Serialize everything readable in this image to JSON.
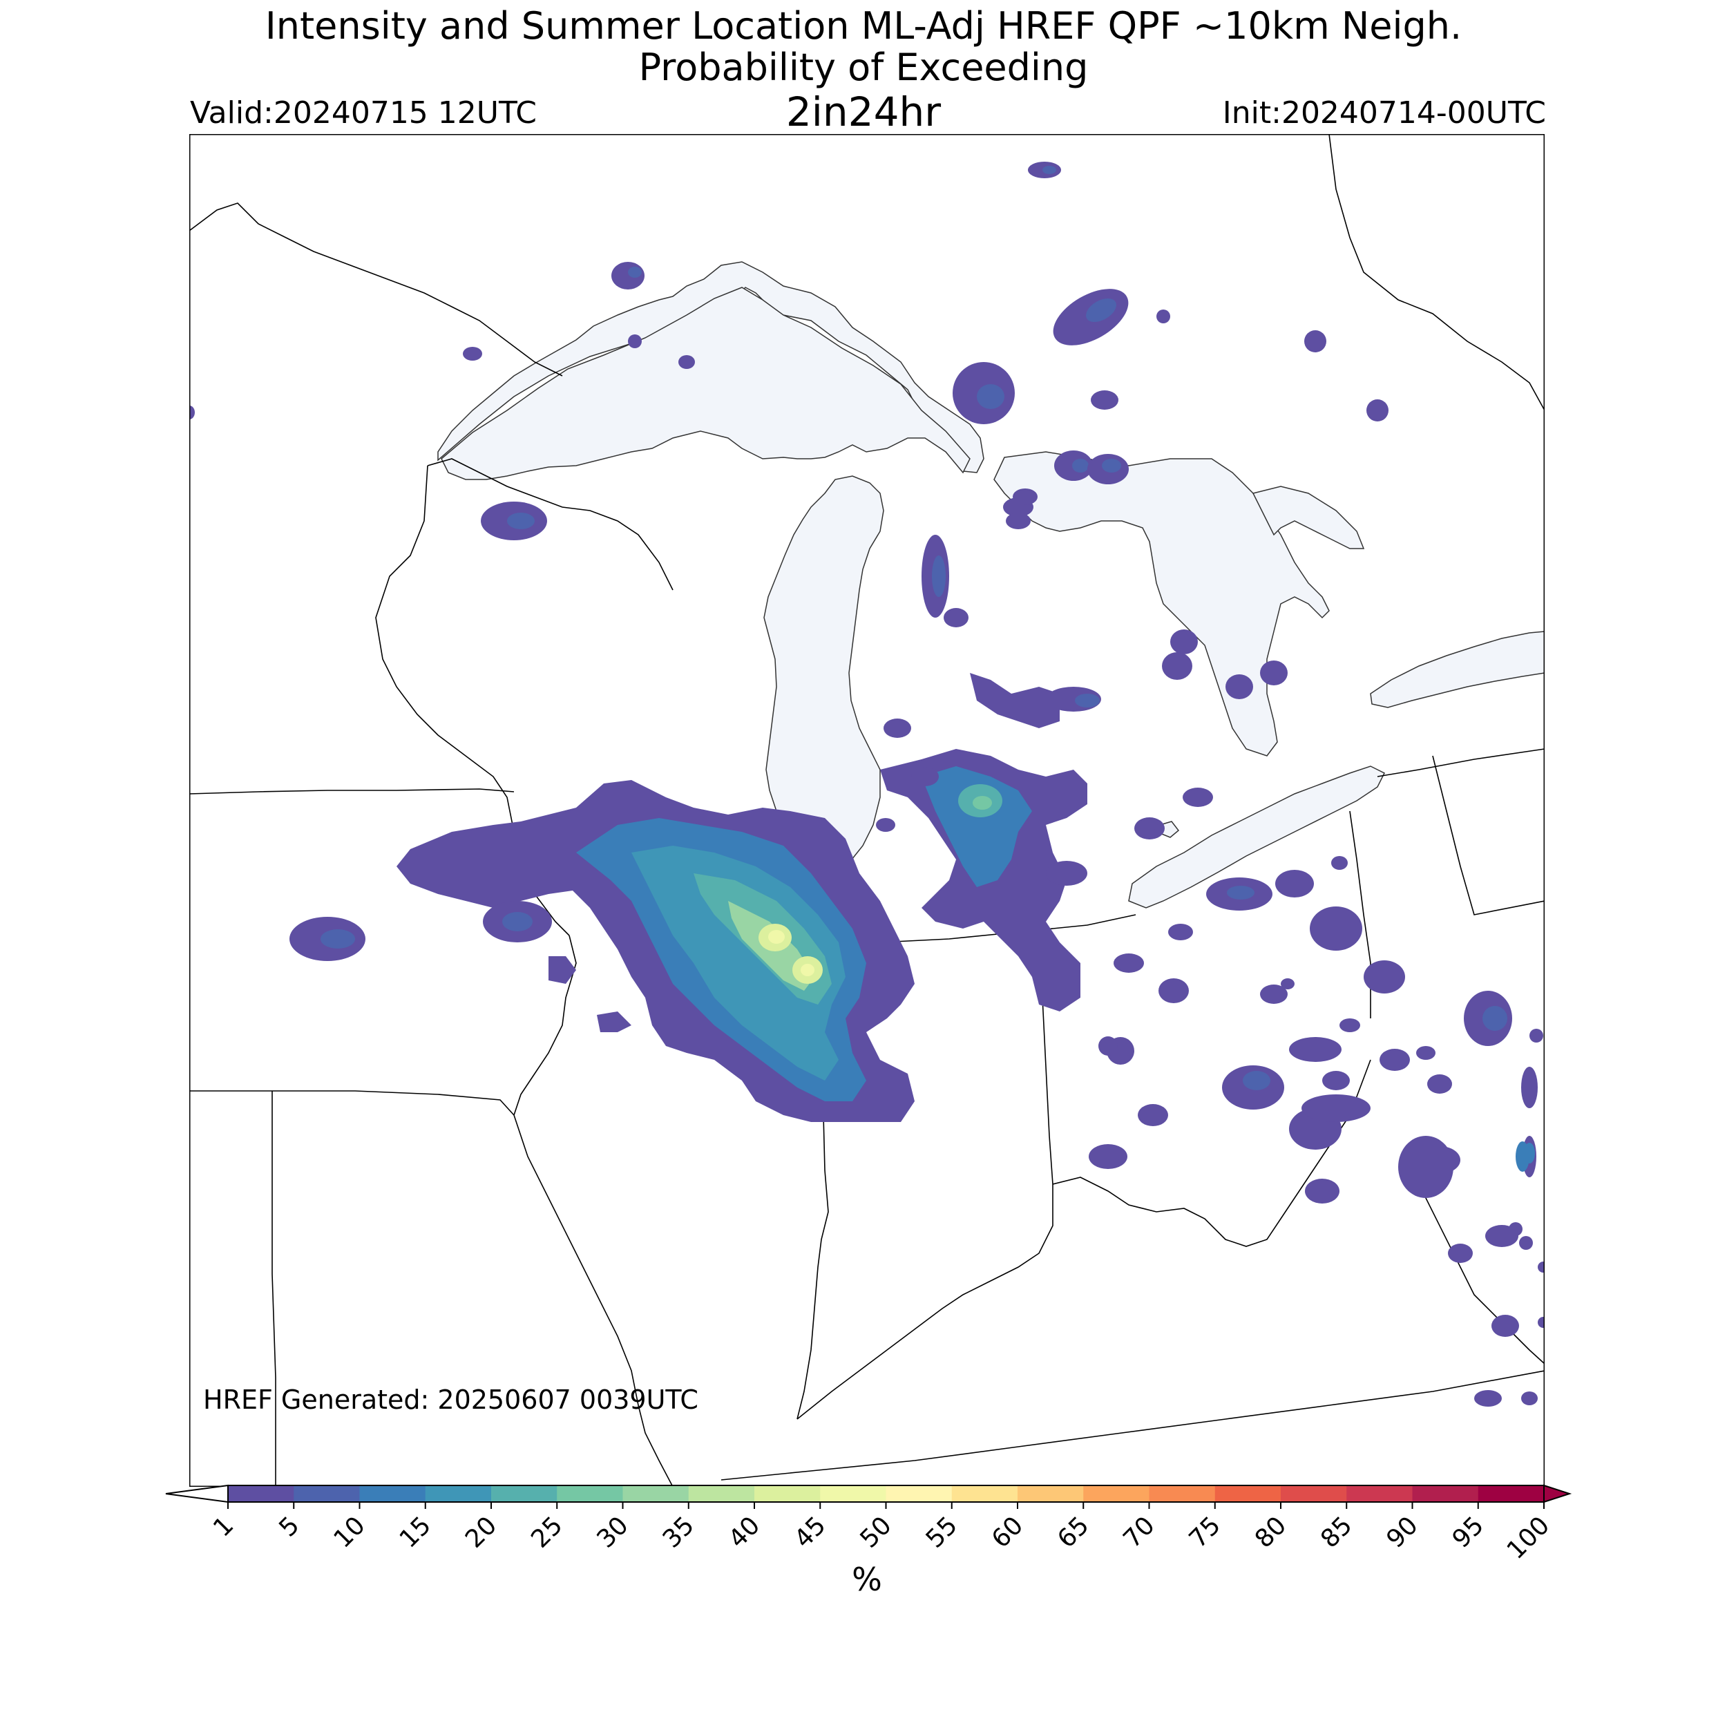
{
  "title": {
    "line1": "Intensity and Summer Location ML-Adj HREF QPF ~10km Neigh.",
    "line2": "Probability of Exceeding",
    "line3": "2in24hr"
  },
  "valid": "Valid:20240715 12UTC",
  "init": "Init:20240714-00UTC",
  "footer": "HREF Generated: 20250607 0039UTC",
  "colorbar": {
    "label": "%",
    "ticks": [
      "1",
      "5",
      "10",
      "15",
      "20",
      "25",
      "30",
      "35",
      "40",
      "45",
      "50",
      "55",
      "60",
      "65",
      "70",
      "75",
      "80",
      "85",
      "90",
      "95",
      "100"
    ],
    "colors": [
      "#5e4fa2",
      "#4d63ad",
      "#3a7eb8",
      "#3f96b7",
      "#56b0ad",
      "#75c7a4",
      "#99d5a4",
      "#bde5a0",
      "#dcf09e",
      "#f0f8a9",
      "#fff5b1",
      "#fee391",
      "#fdc776",
      "#fca55d",
      "#f88a52",
      "#ee6445",
      "#df4d4b",
      "#cc3851",
      "#b11f4e",
      "#9e0142"
    ]
  },
  "map": {
    "water_color": "#f2f5fa",
    "border_color": "#000000"
  }
}
